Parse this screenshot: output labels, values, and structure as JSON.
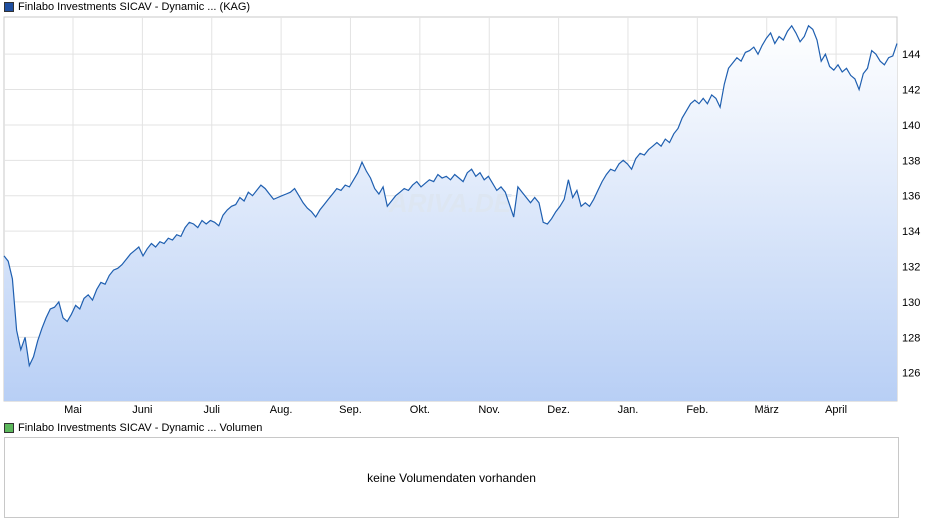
{
  "price_legend": {
    "label": "Finlabo Investments SICAV - Dynamic ... (KAG)",
    "color": "#1f4fa0"
  },
  "volume_legend": {
    "label": "Finlabo Investments SICAV - Dynamic ... Volumen",
    "color": "#5cb85c"
  },
  "volume_message": "keine Volumendaten vorhanden",
  "watermark": "ARIVA.DE",
  "chart_data": {
    "type": "area",
    "series": [
      {
        "name": "Finlabo Investments SICAV - Dynamic ... (KAG)",
        "line_color": "#1f5fb0",
        "values": [
          132.6,
          132.3,
          131.3,
          128.4,
          127.3,
          128.0,
          126.4,
          126.9,
          127.8,
          128.5,
          129.1,
          129.6,
          129.7,
          130.0,
          129.1,
          128.9,
          129.3,
          129.8,
          129.6,
          130.2,
          130.4,
          130.1,
          130.7,
          131.1,
          131.0,
          131.5,
          131.8,
          131.9,
          132.1,
          132.4,
          132.7,
          132.9,
          133.1,
          132.6,
          133.0,
          133.3,
          133.1,
          133.4,
          133.3,
          133.6,
          133.5,
          133.8,
          133.7,
          134.2,
          134.5,
          134.4,
          134.2,
          134.6,
          134.4,
          134.6,
          134.5,
          134.3,
          134.9,
          135.2,
          135.4,
          135.5,
          135.9,
          135.7,
          136.2,
          136.0,
          136.3,
          136.6,
          136.4,
          136.1,
          135.8,
          135.9,
          136.0,
          136.1,
          136.2,
          136.4,
          136.0,
          135.6,
          135.3,
          135.1,
          134.8,
          135.2,
          135.5,
          135.8,
          136.1,
          136.4,
          136.3,
          136.6,
          136.5,
          136.9,
          137.3,
          137.9,
          137.4,
          137.0,
          136.4,
          136.1,
          136.5,
          135.4,
          135.7,
          136.0,
          136.2,
          136.4,
          136.3,
          136.6,
          136.8,
          136.5,
          136.7,
          136.9,
          136.8,
          137.2,
          137.0,
          137.1,
          136.9,
          137.2,
          137.0,
          136.8,
          137.3,
          137.5,
          137.1,
          137.3,
          136.9,
          137.1,
          136.7,
          136.3,
          136.5,
          136.2,
          135.5,
          134.8,
          136.5,
          136.2,
          135.9,
          135.6,
          135.9,
          135.6,
          134.5,
          134.4,
          134.7,
          135.1,
          135.4,
          135.8,
          136.9,
          135.9,
          136.3,
          135.4,
          135.6,
          135.4,
          135.8,
          136.3,
          136.8,
          137.2,
          137.5,
          137.4,
          137.8,
          138.0,
          137.8,
          137.5,
          138.1,
          138.4,
          138.3,
          138.6,
          138.8,
          139.0,
          138.8,
          139.2,
          139.0,
          139.5,
          139.8,
          140.4,
          140.8,
          141.2,
          141.4,
          141.2,
          141.5,
          141.2,
          141.7,
          141.5,
          141.0,
          142.3,
          143.2,
          143.5,
          143.8,
          143.6,
          144.1,
          144.2,
          144.4,
          144.0,
          144.5,
          144.9,
          145.2,
          144.6,
          145.0,
          144.8,
          145.3,
          145.6,
          145.2,
          144.7,
          145.0,
          145.6,
          145.4,
          144.8,
          143.6,
          144.0,
          143.3,
          143.1,
          143.4,
          143.0,
          143.2,
          142.8,
          142.6,
          142.0,
          142.9,
          143.2,
          144.2,
          144.0,
          143.6,
          143.4,
          143.8,
          143.9,
          144.6
        ],
        "months": [
          "April",
          "Mai",
          "Juni",
          "Juli",
          "Aug.",
          "Sep.",
          "Okt.",
          "Nov.",
          "Dez.",
          "Jan.",
          "Feb.",
          "März",
          "April"
        ]
      }
    ],
    "x_tick_labels": [
      "Mai",
      "Juni",
      "Juli",
      "Aug.",
      "Sep.",
      "Okt.",
      "Nov.",
      "Dez.",
      "Jan.",
      "Feb.",
      "März",
      "April"
    ],
    "y_tick_labels": [
      "126",
      "128",
      "130",
      "132",
      "134",
      "136",
      "138",
      "140",
      "142",
      "144"
    ],
    "y_ticks": [
      126,
      128,
      130,
      132,
      134,
      136,
      138,
      140,
      142,
      144
    ],
    "ylim": [
      124.4,
      146.1
    ],
    "grid": true,
    "y_axis_side": "right",
    "title": "",
    "xlabel": "",
    "ylabel": ""
  }
}
